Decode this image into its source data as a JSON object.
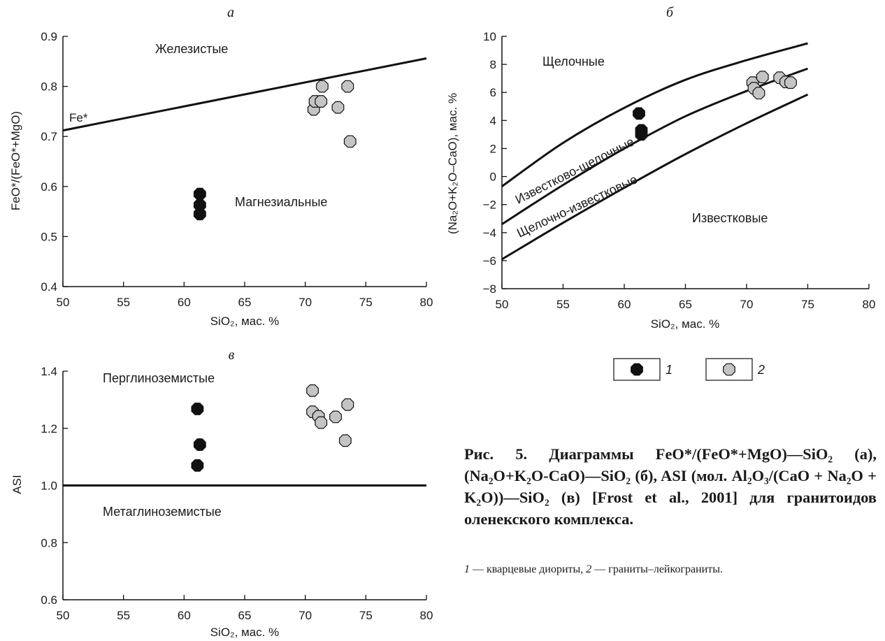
{
  "chart_data": [
    {
      "id": "a",
      "type": "scatter",
      "title": "а",
      "xlabel": "SiO₂, мас. %",
      "ylabel": "FeO*/(FeO*+MgO)",
      "xlim": [
        50,
        80
      ],
      "ylim": [
        0.4,
        0.9
      ],
      "xticks": [
        "50",
        "55",
        "60",
        "65",
        "70",
        "75",
        "80"
      ],
      "yticks": [
        "0.4",
        "0.5",
        "0.6",
        "0.7",
        "0.8",
        "0.9"
      ],
      "lines": [
        {
          "name": "Fe*",
          "points": [
            [
              50,
              0.712
            ],
            [
              80,
              0.856
            ]
          ]
        }
      ],
      "regions": [
        "Железистые",
        "Магнезиальные"
      ],
      "series": [
        {
          "legend": "1",
          "points": [
            [
              61.3,
              0.585
            ],
            [
              61.3,
              0.563
            ],
            [
              61.3,
              0.545
            ]
          ]
        },
        {
          "legend": "2",
          "points": [
            [
              70.7,
              0.754
            ],
            [
              70.8,
              0.77
            ],
            [
              71.3,
              0.77
            ],
            [
              71.4,
              0.8
            ],
            [
              72.7,
              0.758
            ],
            [
              73.5,
              0.8
            ],
            [
              73.7,
              0.69
            ]
          ]
        }
      ]
    },
    {
      "id": "b",
      "type": "scatter",
      "title": "б",
      "xlabel": "SiO₂, мас. %",
      "ylabel": "(Na₂O+K₂O–CaO), мас. %",
      "xlim": [
        50,
        80
      ],
      "ylim": [
        -8,
        10
      ],
      "xticks": [
        "50",
        "55",
        "60",
        "65",
        "70",
        "75",
        "80"
      ],
      "yticks": [
        "−8",
        "−6",
        "−4",
        "−2",
        "0",
        "2",
        "4",
        "6",
        "8",
        "10"
      ],
      "lines": [
        {
          "points": [
            [
              50,
              -0.7
            ],
            [
              55,
              2.4
            ],
            [
              60,
              4.9
            ],
            [
              65,
              6.9
            ],
            [
              70,
              8.3
            ],
            [
              75,
              9.5
            ]
          ]
        },
        {
          "points": [
            [
              50,
              -3.4
            ],
            [
              55,
              -0.6
            ],
            [
              60,
              2.0
            ],
            [
              65,
              4.3
            ],
            [
              70,
              6.1
            ],
            [
              75,
              7.7
            ]
          ]
        },
        {
          "points": [
            [
              50,
              -5.9
            ],
            [
              55,
              -3.3
            ],
            [
              60,
              -0.8
            ],
            [
              65,
              1.6
            ],
            [
              70,
              3.8
            ],
            [
              75,
              5.85
            ]
          ]
        }
      ],
      "regions": [
        "Щелочные",
        "Известково-щелочные",
        "Щелочно-известковые",
        "Известковые"
      ],
      "series": [
        {
          "legend": "1",
          "points": [
            [
              61.2,
              4.5
            ],
            [
              61.4,
              3.3
            ],
            [
              61.4,
              3.0
            ]
          ]
        },
        {
          "legend": "2",
          "points": [
            [
              70.5,
              6.7
            ],
            [
              70.6,
              6.3
            ],
            [
              71.3,
              7.1
            ],
            [
              71.0,
              5.95
            ],
            [
              72.7,
              7.05
            ],
            [
              73.2,
              6.75
            ],
            [
              73.6,
              6.7
            ]
          ]
        }
      ]
    },
    {
      "id": "v",
      "type": "scatter",
      "title": "в",
      "xlabel": "SiO₂, мас. %",
      "ylabel": "ASI",
      "xlim": [
        50,
        80
      ],
      "ylim": [
        0.6,
        1.4
      ],
      "xticks": [
        "50",
        "55",
        "60",
        "65",
        "70",
        "75",
        "80"
      ],
      "yticks": [
        "0.6",
        "0.8",
        "1.0",
        "1.2",
        "1.4"
      ],
      "lines": [
        {
          "points": [
            [
              50,
              1.0
            ],
            [
              80,
              1.0
            ]
          ]
        }
      ],
      "regions": [
        "Перглиноземистые",
        "Метаглиноземистые"
      ],
      "series": [
        {
          "legend": "1",
          "points": [
            [
              61.1,
              1.268
            ],
            [
              61.3,
              1.143
            ],
            [
              61.1,
              1.07
            ]
          ]
        },
        {
          "legend": "2",
          "points": [
            [
              70.6,
              1.332
            ],
            [
              70.6,
              1.258
            ],
            [
              71.1,
              1.242
            ],
            [
              71.3,
              1.22
            ],
            [
              72.5,
              1.24
            ],
            [
              73.5,
              1.283
            ],
            [
              73.3,
              1.157
            ]
          ]
        }
      ]
    }
  ],
  "legend": [
    {
      "label": "1",
      "color": "#111111"
    },
    {
      "label": "2",
      "color": "#c4c4c4"
    }
  ],
  "caption": "Рис. 5. Диаграммы FeO*/(FeO*+MgO)—SiO₂ (а), (Na₂O+K₂O-CaO)—SiO₂ (б), ASI (мол. Al₂O₃/(CaO + Na₂O + K₂O))—SiO₂ (в) [Frost et al., 2001] для гранитоидов оленекского комплекса.",
  "legend_note": {
    "n1": "1",
    "t1": " — кварцевые диориты, ",
    "n2": "2",
    "t2": " — граниты–лейкограниты."
  }
}
